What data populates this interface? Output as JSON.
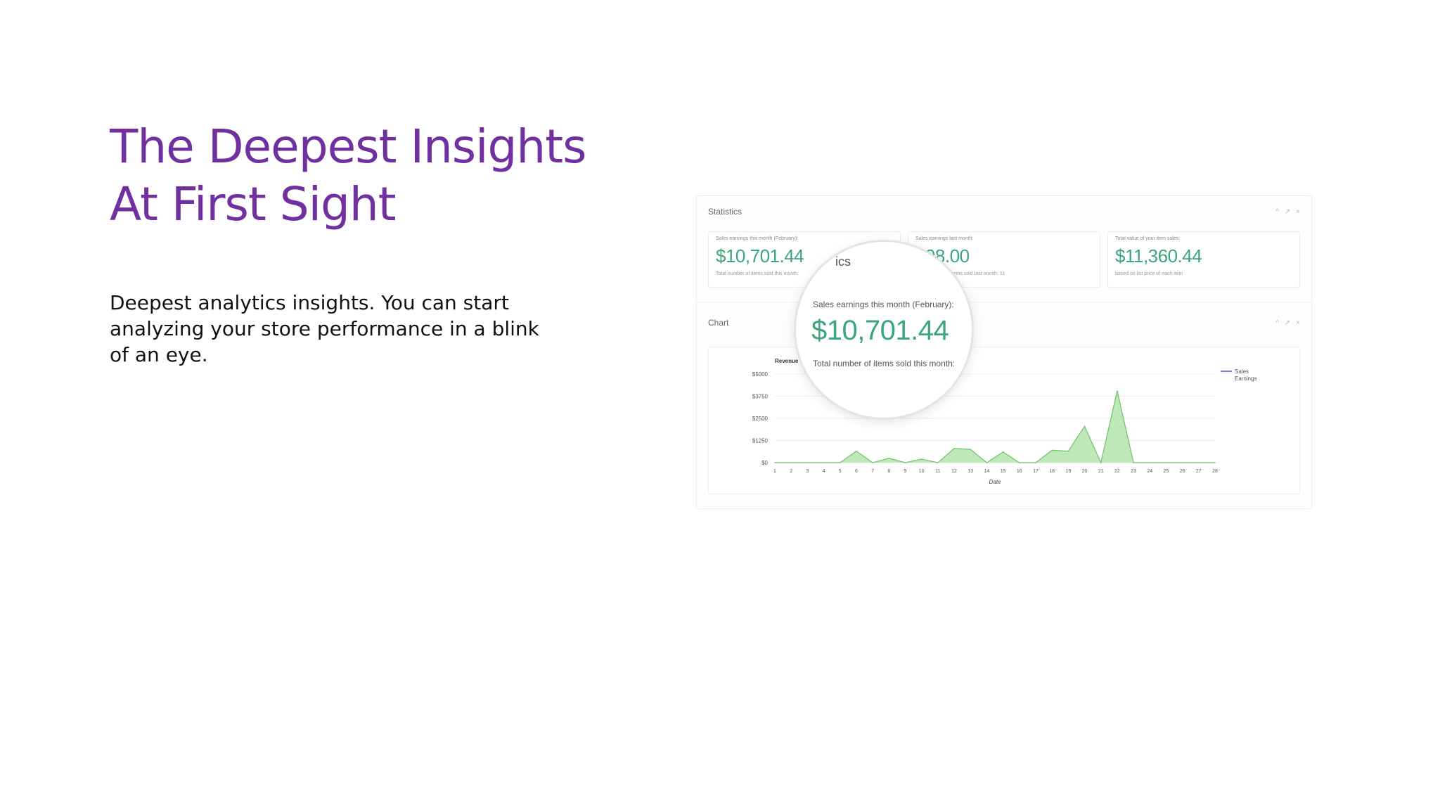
{
  "slide": {
    "title_lines": [
      "The Deepest Insights",
      "At First Sight"
    ],
    "body": "Deepest analytics insights. You can start analyzing your store performance in a blink of an eye."
  },
  "dashboard": {
    "statistics_label": "Statistics",
    "chart_label": "Chart",
    "panel_tools": [
      "^",
      "↗",
      "×"
    ],
    "cards": [
      {
        "label": "Sales earnings this month (February):",
        "value": "$10,701.44",
        "sub": "Total number of items sold this month:"
      },
      {
        "label": "Sales earnings last month:",
        "value": "$98.00",
        "sub": "Total number of items sold last month: 11"
      },
      {
        "label": "Total value of your item sales:",
        "value": "$11,360.44",
        "sub": "based on list price of each item"
      }
    ],
    "magnifier": {
      "fragment": "ics",
      "label": "Sales earnings this month (February):",
      "value": "$10,701.44",
      "sub": "Total number of items sold this month:"
    }
  },
  "colors": {
    "accent_purple": "#7030a0",
    "value_green": "#3aa67a",
    "area_fill": "#bfe8b8",
    "area_line": "#6cc36a",
    "legend_line": "#7b7bd6"
  },
  "chart_data": {
    "type": "area",
    "title": "",
    "ylabel": "Revenue",
    "xlabel": "Date",
    "x": [
      1,
      2,
      3,
      4,
      5,
      6,
      7,
      8,
      9,
      10,
      11,
      12,
      13,
      14,
      15,
      16,
      17,
      18,
      19,
      20,
      21,
      22,
      23,
      24,
      25,
      26,
      27,
      28
    ],
    "ylim": [
      0,
      5000
    ],
    "y_ticks": [
      "$5000",
      "$3750",
      "$2500",
      "$1250",
      "$0"
    ],
    "y_tick_values": [
      5000,
      3750,
      2500,
      1250,
      0
    ],
    "series": [
      {
        "name": "Sales Earnings",
        "values": [
          0,
          0,
          0,
          0,
          0,
          650,
          0,
          250,
          0,
          200,
          0,
          800,
          750,
          0,
          600,
          0,
          0,
          700,
          650,
          2050,
          0,
          4050,
          0,
          0,
          0,
          0,
          0,
          0
        ]
      }
    ],
    "legend": "top-right"
  }
}
